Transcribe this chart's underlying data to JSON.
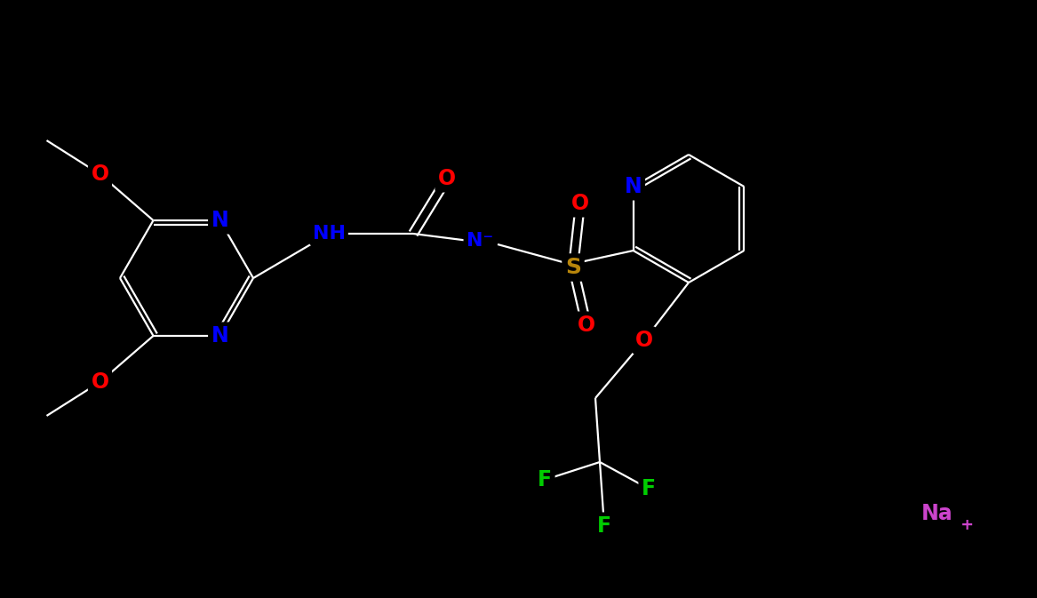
{
  "background_color": "#000000",
  "bond_color": "#ffffff",
  "atom_colors": {
    "N": "#0000ff",
    "O": "#ff0000",
    "S": "#b8860b",
    "F": "#00cc00",
    "Na": "#cc44cc"
  },
  "figsize": [
    11.67,
    6.73
  ],
  "dpi": 100
}
